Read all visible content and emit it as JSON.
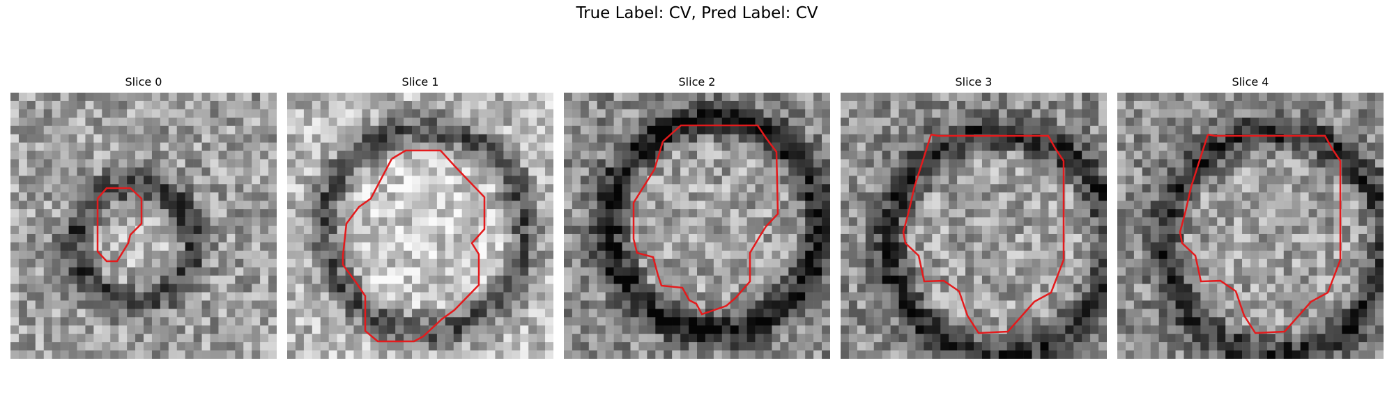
{
  "figure": {
    "title": "True Label: CV, Pred Label: CV"
  },
  "panels": [
    {
      "title": "Slice 0"
    },
    {
      "title": "Slice 1"
    },
    {
      "title": "Slice 2"
    },
    {
      "title": "Slice 3"
    },
    {
      "title": "Slice 4"
    }
  ],
  "colors": {
    "contour": "#e41a1c",
    "background": "#ffffff"
  }
}
